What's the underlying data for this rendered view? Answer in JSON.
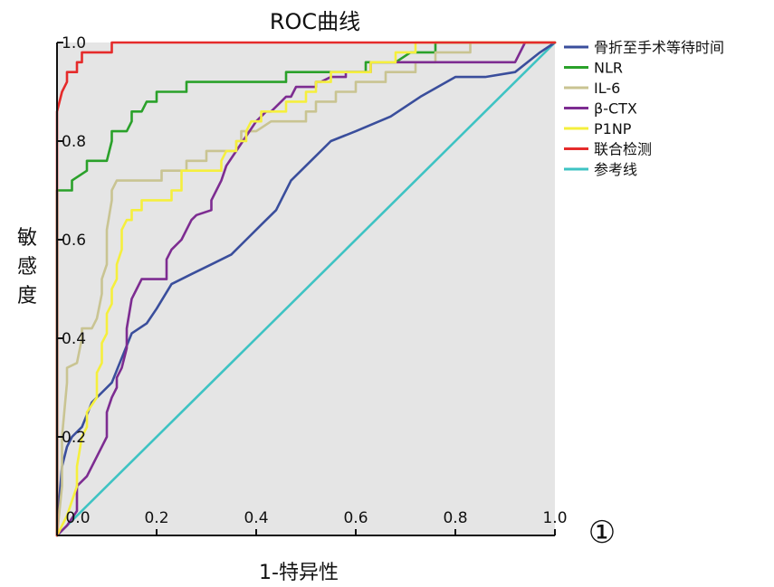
{
  "panel_number": "①",
  "chart_data": {
    "type": "line",
    "title": "ROC曲线",
    "xlabel": "1-特异性",
    "ylabel": "敏感度",
    "xlim": [
      0,
      1
    ],
    "ylim": [
      0,
      1
    ],
    "x_ticks": [
      "0.0",
      "0.2",
      "0.4",
      "0.6",
      "0.8",
      "1.0"
    ],
    "y_ticks": [
      "0.2",
      "0.4",
      "0.6",
      "0.8",
      "1.0"
    ],
    "grid": false,
    "legend_position": "right",
    "series": [
      {
        "name": "骨折至手术等待时间",
        "color": "#3a4e9c",
        "points": [
          [
            0,
            0
          ],
          [
            0.005,
            0.08
          ],
          [
            0.01,
            0.14
          ],
          [
            0.02,
            0.18
          ],
          [
            0.03,
            0.2
          ],
          [
            0.05,
            0.22
          ],
          [
            0.07,
            0.27
          ],
          [
            0.09,
            0.29
          ],
          [
            0.11,
            0.31
          ],
          [
            0.13,
            0.36
          ],
          [
            0.15,
            0.41
          ],
          [
            0.18,
            0.43
          ],
          [
            0.2,
            0.46
          ],
          [
            0.23,
            0.51
          ],
          [
            0.27,
            0.53
          ],
          [
            0.31,
            0.55
          ],
          [
            0.35,
            0.57
          ],
          [
            0.38,
            0.6
          ],
          [
            0.41,
            0.63
          ],
          [
            0.44,
            0.66
          ],
          [
            0.47,
            0.72
          ],
          [
            0.51,
            0.76
          ],
          [
            0.55,
            0.8
          ],
          [
            0.6,
            0.82
          ],
          [
            0.67,
            0.85
          ],
          [
            0.73,
            0.89
          ],
          [
            0.8,
            0.93
          ],
          [
            0.86,
            0.93
          ],
          [
            0.92,
            0.94
          ],
          [
            0.97,
            0.98
          ],
          [
            1,
            1
          ]
        ]
      },
      {
        "name": "NLR",
        "color": "#2aa12a",
        "points": [
          [
            0,
            0
          ],
          [
            0,
            0.7
          ],
          [
            0.03,
            0.7
          ],
          [
            0.03,
            0.72
          ],
          [
            0.06,
            0.74
          ],
          [
            0.06,
            0.76
          ],
          [
            0.1,
            0.76
          ],
          [
            0.11,
            0.8
          ],
          [
            0.11,
            0.82
          ],
          [
            0.14,
            0.82
          ],
          [
            0.15,
            0.84
          ],
          [
            0.15,
            0.86
          ],
          [
            0.17,
            0.86
          ],
          [
            0.18,
            0.88
          ],
          [
            0.2,
            0.88
          ],
          [
            0.2,
            0.9
          ],
          [
            0.26,
            0.9
          ],
          [
            0.26,
            0.92
          ],
          [
            0.46,
            0.92
          ],
          [
            0.46,
            0.94
          ],
          [
            0.62,
            0.94
          ],
          [
            0.62,
            0.96
          ],
          [
            0.68,
            0.96
          ],
          [
            0.71,
            0.98
          ],
          [
            0.76,
            0.98
          ],
          [
            0.76,
            1
          ],
          [
            1,
            1
          ]
        ]
      },
      {
        "name": "IL-6",
        "color": "#c9c492",
        "points": [
          [
            0,
            0
          ],
          [
            0.01,
            0.1
          ],
          [
            0.01,
            0.2
          ],
          [
            0.02,
            0.31
          ],
          [
            0.02,
            0.34
          ],
          [
            0.04,
            0.35
          ],
          [
            0.05,
            0.4
          ],
          [
            0.05,
            0.42
          ],
          [
            0.07,
            0.42
          ],
          [
            0.08,
            0.44
          ],
          [
            0.09,
            0.49
          ],
          [
            0.09,
            0.52
          ],
          [
            0.1,
            0.55
          ],
          [
            0.1,
            0.62
          ],
          [
            0.11,
            0.68
          ],
          [
            0.11,
            0.7
          ],
          [
            0.12,
            0.72
          ],
          [
            0.21,
            0.72
          ],
          [
            0.21,
            0.74
          ],
          [
            0.26,
            0.74
          ],
          [
            0.26,
            0.76
          ],
          [
            0.3,
            0.76
          ],
          [
            0.3,
            0.78
          ],
          [
            0.36,
            0.78
          ],
          [
            0.36,
            0.8
          ],
          [
            0.37,
            0.8
          ],
          [
            0.37,
            0.82
          ],
          [
            0.4,
            0.82
          ],
          [
            0.43,
            0.84
          ],
          [
            0.5,
            0.84
          ],
          [
            0.5,
            0.86
          ],
          [
            0.52,
            0.86
          ],
          [
            0.52,
            0.88
          ],
          [
            0.56,
            0.88
          ],
          [
            0.56,
            0.9
          ],
          [
            0.6,
            0.9
          ],
          [
            0.6,
            0.92
          ],
          [
            0.66,
            0.92
          ],
          [
            0.66,
            0.94
          ],
          [
            0.72,
            0.94
          ],
          [
            0.72,
            0.96
          ],
          [
            0.76,
            0.96
          ],
          [
            0.76,
            0.98
          ],
          [
            0.83,
            0.98
          ],
          [
            0.83,
            1
          ],
          [
            1,
            1
          ]
        ]
      },
      {
        "name": "β-CTX",
        "color": "#7d2c91",
        "points": [
          [
            0,
            0
          ],
          [
            0.02,
            0.02
          ],
          [
            0.04,
            0.05
          ],
          [
            0.04,
            0.1
          ],
          [
            0.06,
            0.12
          ],
          [
            0.07,
            0.14
          ],
          [
            0.08,
            0.16
          ],
          [
            0.09,
            0.18
          ],
          [
            0.1,
            0.2
          ],
          [
            0.1,
            0.25
          ],
          [
            0.11,
            0.28
          ],
          [
            0.12,
            0.3
          ],
          [
            0.12,
            0.32
          ],
          [
            0.13,
            0.34
          ],
          [
            0.14,
            0.38
          ],
          [
            0.14,
            0.42
          ],
          [
            0.15,
            0.48
          ],
          [
            0.16,
            0.5
          ],
          [
            0.17,
            0.52
          ],
          [
            0.22,
            0.52
          ],
          [
            0.22,
            0.56
          ],
          [
            0.23,
            0.58
          ],
          [
            0.25,
            0.6
          ],
          [
            0.26,
            0.62
          ],
          [
            0.27,
            0.64
          ],
          [
            0.28,
            0.65
          ],
          [
            0.31,
            0.66
          ],
          [
            0.31,
            0.68
          ],
          [
            0.33,
            0.72
          ],
          [
            0.34,
            0.75
          ],
          [
            0.36,
            0.78
          ],
          [
            0.38,
            0.81
          ],
          [
            0.4,
            0.84
          ],
          [
            0.42,
            0.86
          ],
          [
            0.43,
            0.86
          ],
          [
            0.45,
            0.88
          ],
          [
            0.46,
            0.89
          ],
          [
            0.47,
            0.89
          ],
          [
            0.48,
            0.91
          ],
          [
            0.5,
            0.91
          ],
          [
            0.52,
            0.91
          ],
          [
            0.52,
            0.92
          ],
          [
            0.53,
            0.92
          ],
          [
            0.55,
            0.93
          ],
          [
            0.58,
            0.93
          ],
          [
            0.58,
            0.94
          ],
          [
            0.63,
            0.94
          ],
          [
            0.63,
            0.96
          ],
          [
            0.92,
            0.96
          ],
          [
            0.94,
            1
          ],
          [
            1,
            1
          ]
        ]
      },
      {
        "name": "P1NP",
        "color": "#f5ef3d",
        "points": [
          [
            0,
            0
          ],
          [
            0.02,
            0.04
          ],
          [
            0.04,
            0.1
          ],
          [
            0.04,
            0.14
          ],
          [
            0.05,
            0.2
          ],
          [
            0.06,
            0.22
          ],
          [
            0.06,
            0.25
          ],
          [
            0.08,
            0.28
          ],
          [
            0.08,
            0.33
          ],
          [
            0.09,
            0.35
          ],
          [
            0.09,
            0.39
          ],
          [
            0.1,
            0.41
          ],
          [
            0.1,
            0.45
          ],
          [
            0.11,
            0.47
          ],
          [
            0.11,
            0.5
          ],
          [
            0.12,
            0.52
          ],
          [
            0.12,
            0.55
          ],
          [
            0.13,
            0.58
          ],
          [
            0.13,
            0.62
          ],
          [
            0.14,
            0.64
          ],
          [
            0.15,
            0.64
          ],
          [
            0.15,
            0.66
          ],
          [
            0.17,
            0.66
          ],
          [
            0.17,
            0.68
          ],
          [
            0.23,
            0.68
          ],
          [
            0.23,
            0.7
          ],
          [
            0.25,
            0.7
          ],
          [
            0.25,
            0.74
          ],
          [
            0.33,
            0.74
          ],
          [
            0.33,
            0.76
          ],
          [
            0.34,
            0.78
          ],
          [
            0.36,
            0.78
          ],
          [
            0.36,
            0.8
          ],
          [
            0.38,
            0.8
          ],
          [
            0.38,
            0.82
          ],
          [
            0.39,
            0.84
          ],
          [
            0.41,
            0.84
          ],
          [
            0.41,
            0.86
          ],
          [
            0.46,
            0.86
          ],
          [
            0.46,
            0.88
          ],
          [
            0.5,
            0.88
          ],
          [
            0.5,
            0.9
          ],
          [
            0.52,
            0.9
          ],
          [
            0.52,
            0.92
          ],
          [
            0.55,
            0.92
          ],
          [
            0.55,
            0.94
          ],
          [
            0.63,
            0.94
          ],
          [
            0.63,
            0.96
          ],
          [
            0.68,
            0.96
          ],
          [
            0.68,
            0.98
          ],
          [
            0.72,
            0.98
          ],
          [
            0.72,
            1
          ],
          [
            1,
            1
          ]
        ]
      },
      {
        "name": "联合检测",
        "color": "#e52b2b",
        "points": [
          [
            0,
            0
          ],
          [
            0,
            0.86
          ],
          [
            0.01,
            0.9
          ],
          [
            0.02,
            0.92
          ],
          [
            0.02,
            0.94
          ],
          [
            0.04,
            0.94
          ],
          [
            0.04,
            0.96
          ],
          [
            0.05,
            0.96
          ],
          [
            0.05,
            0.98
          ],
          [
            0.11,
            0.98
          ],
          [
            0.11,
            1
          ],
          [
            1,
            1
          ]
        ]
      },
      {
        "name": "参考线",
        "color": "#3ec3c3",
        "points": [
          [
            0,
            0
          ],
          [
            1,
            1
          ]
        ]
      }
    ]
  }
}
